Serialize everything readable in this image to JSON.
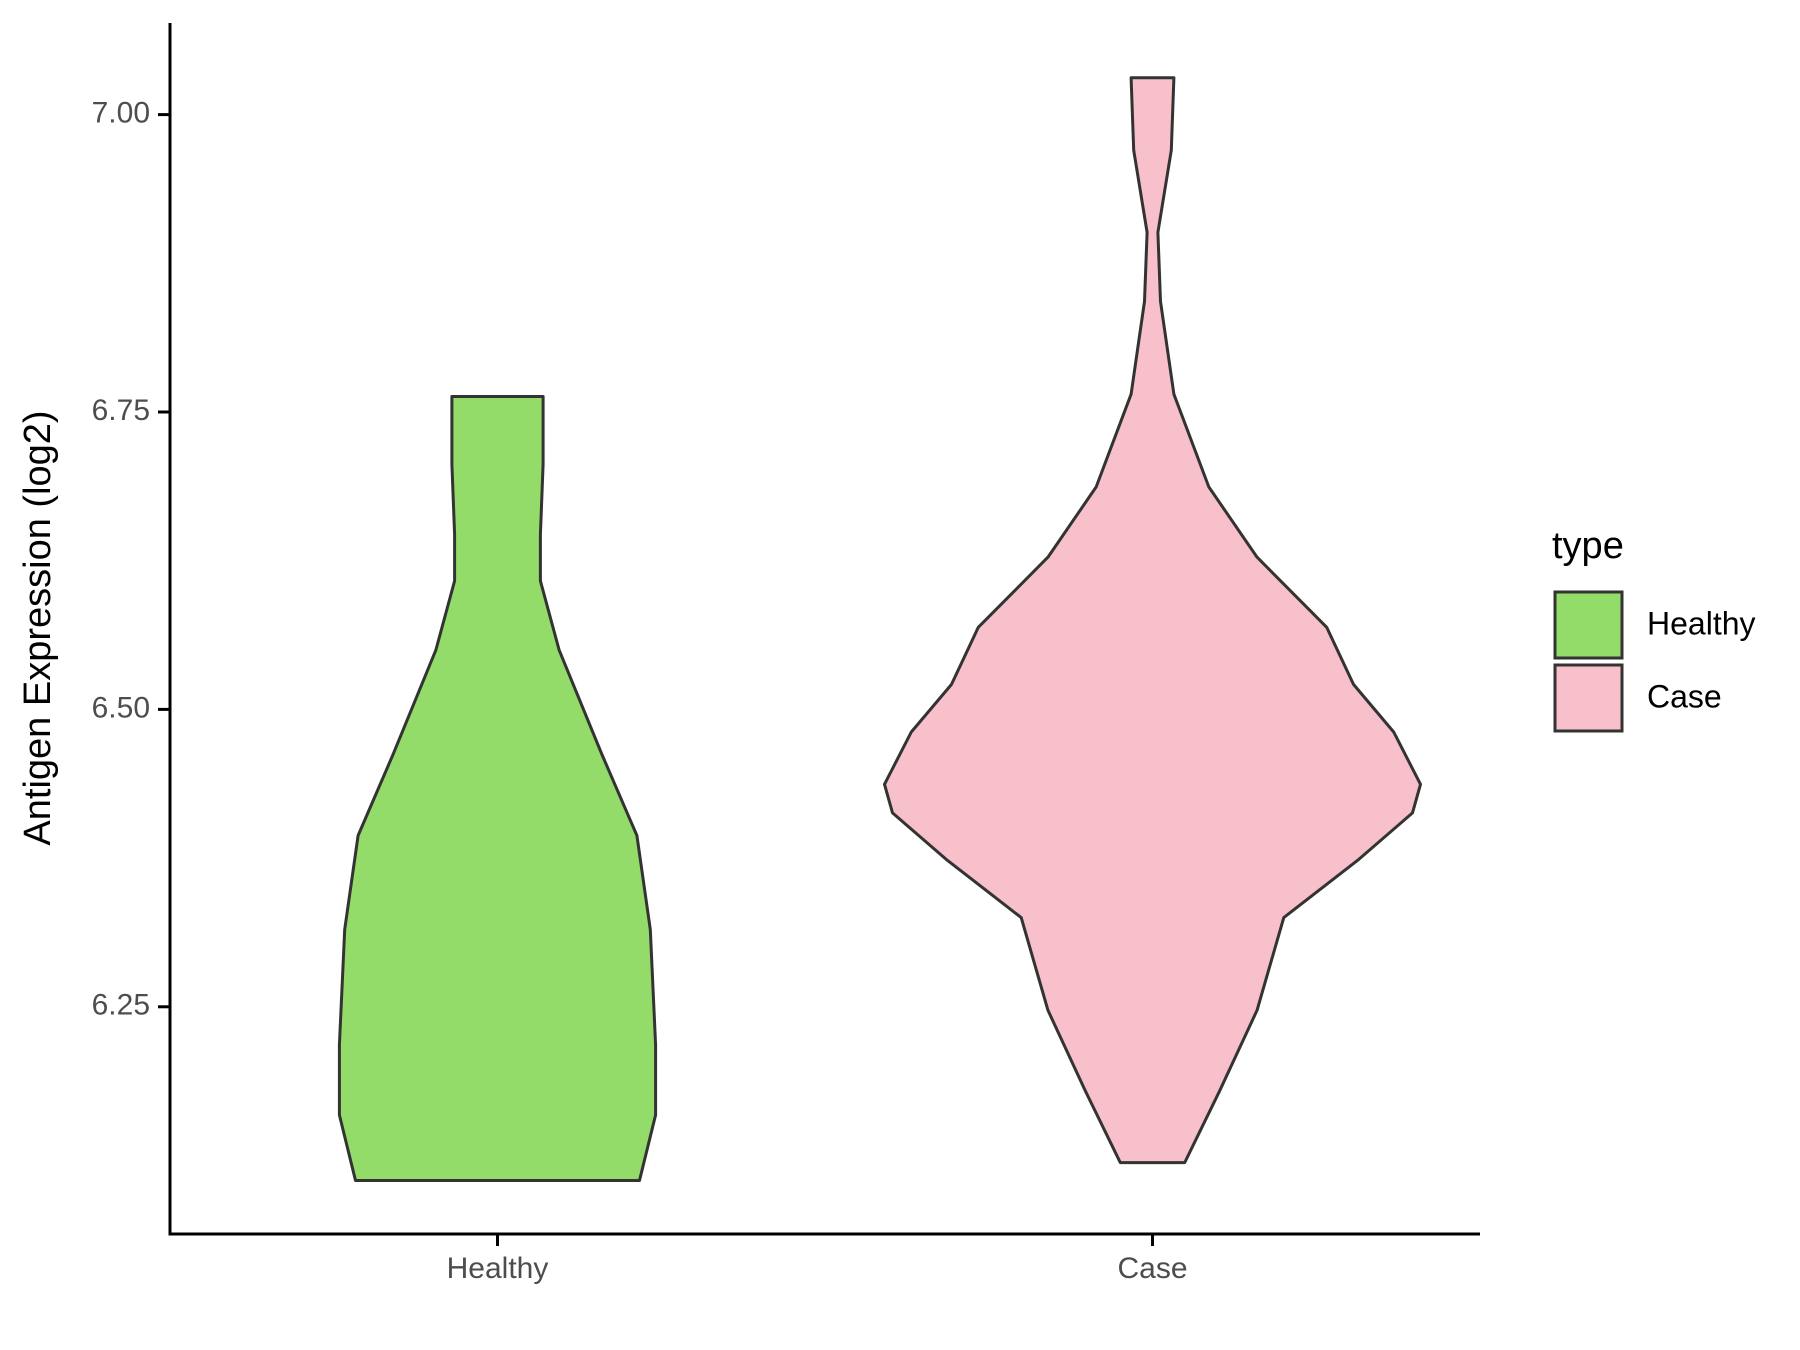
{
  "chart_data": {
    "type": "violin",
    "y_label": "Antigen Expression (log2)",
    "categories": [
      "Healthy",
      "Case"
    ],
    "legend_title": "type",
    "legend": "right",
    "ylim": [
      6.059,
      7.077
    ],
    "yticks": [
      6.25,
      {
        "value": 6.5,
        "label": "6.50"
      },
      6.75,
      {
        "value": 7.0,
        "label": "7.00"
      }
    ],
    "series": [
      {
        "name": "Healthy",
        "color": "#93dc6a",
        "y": [
          6.104,
          6.159,
          6.218,
          6.315,
          6.394,
          6.462,
          6.55,
          6.608,
          6.647,
          6.706,
          6.763
        ],
        "width": [
          0.53,
          0.59,
          0.59,
          0.57,
          0.52,
          0.39,
          0.23,
          0.16,
          0.16,
          0.17,
          0.17
        ]
      },
      {
        "name": "Case",
        "color": "#f7c0cb",
        "y": [
          6.119,
          6.179,
          6.247,
          6.325,
          6.374,
          6.413,
          6.437,
          6.481,
          6.521,
          6.569,
          6.628,
          6.687,
          6.765,
          6.843,
          6.901,
          6.97,
          7.031
        ],
        "width": [
          0.12,
          0.25,
          0.39,
          0.49,
          0.77,
          0.97,
          1.0,
          0.9,
          0.75,
          0.65,
          0.39,
          0.21,
          0.08,
          0.03,
          0.02,
          0.07,
          0.08
        ]
      }
    ]
  }
}
